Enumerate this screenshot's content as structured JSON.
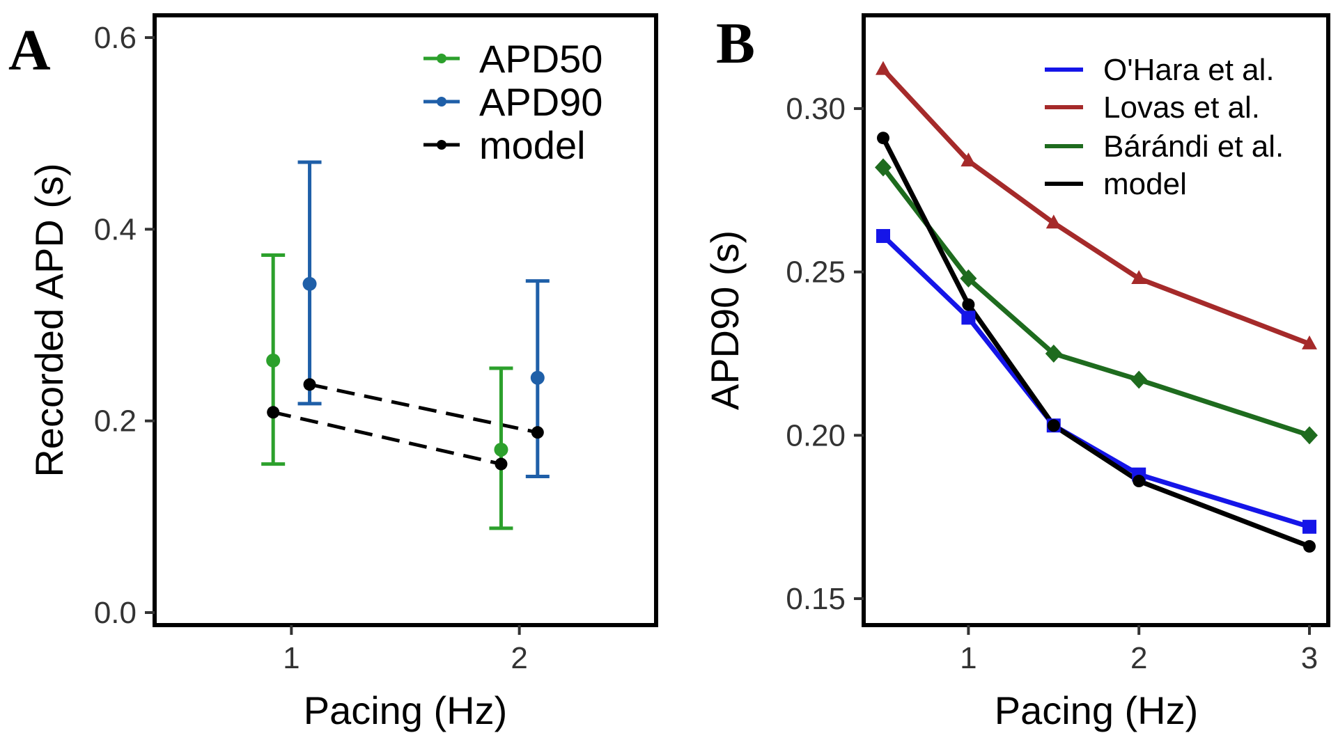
{
  "chart_data": [
    {
      "panel": "A",
      "type": "scatter",
      "xlabel": "Pacing (Hz)",
      "ylabel": "Recorded APD (s)",
      "xlim": [
        0.4,
        2.6
      ],
      "ylim": [
        0.0,
        0.6
      ],
      "x_ticks": [
        "1",
        "2"
      ],
      "y_ticks": [
        "0.0",
        "0.2",
        "0.4",
        "0.6"
      ],
      "legend_position": "top-right",
      "series": [
        {
          "name": "APD50",
          "color": "#2ca02c",
          "kind": "errorbar",
          "points": [
            {
              "x": 0.92,
              "y": 0.263,
              "lo": 0.155,
              "hi": 0.373
            },
            {
              "x": 1.92,
              "y": 0.17,
              "lo": 0.088,
              "hi": 0.255
            }
          ]
        },
        {
          "name": "APD90",
          "color": "#1f5fa8",
          "kind": "errorbar",
          "points": [
            {
              "x": 1.08,
              "y": 0.343,
              "lo": 0.218,
              "hi": 0.47
            },
            {
              "x": 2.08,
              "y": 0.245,
              "lo": 0.142,
              "hi": 0.346
            }
          ]
        },
        {
          "name": "model",
          "color": "#000000",
          "kind": "dashed-pairs",
          "lines": [
            [
              {
                "x": 0.92,
                "y": 0.209
              },
              {
                "x": 1.92,
                "y": 0.155
              }
            ],
            [
              {
                "x": 1.08,
                "y": 0.238
              },
              {
                "x": 2.08,
                "y": 0.188
              }
            ]
          ]
        }
      ]
    },
    {
      "panel": "B",
      "type": "line",
      "xlabel": "Pacing (Hz)",
      "ylabel": "APD90 (s)",
      "xlim": [
        0.4,
        3.1
      ],
      "ylim": [
        0.135,
        0.33
      ],
      "x_ticks": [
        "1",
        "2",
        "3"
      ],
      "y_ticks": [
        "0.15",
        "0.20",
        "0.25",
        "0.30"
      ],
      "legend_position": "top-right",
      "x": [
        0.5,
        1,
        1.5,
        2,
        3
      ],
      "series": [
        {
          "name": "O'Hara et al.",
          "color": "#1515e8",
          "marker": "square",
          "values": [
            0.261,
            0.236,
            0.203,
            0.188,
            0.172
          ]
        },
        {
          "name": "Lovas et al.",
          "color": "#a52a2a",
          "marker": "triangle",
          "values": [
            0.312,
            0.284,
            0.265,
            0.248,
            0.228
          ]
        },
        {
          "name": "Bárándi et al.",
          "color": "#1e6b1e",
          "marker": "diamond",
          "values": [
            0.282,
            0.248,
            0.225,
            0.217,
            0.2
          ]
        },
        {
          "name": "model",
          "color": "#000000",
          "marker": "circle",
          "values": [
            0.291,
            0.24,
            0.203,
            0.186,
            0.166
          ]
        }
      ]
    }
  ]
}
